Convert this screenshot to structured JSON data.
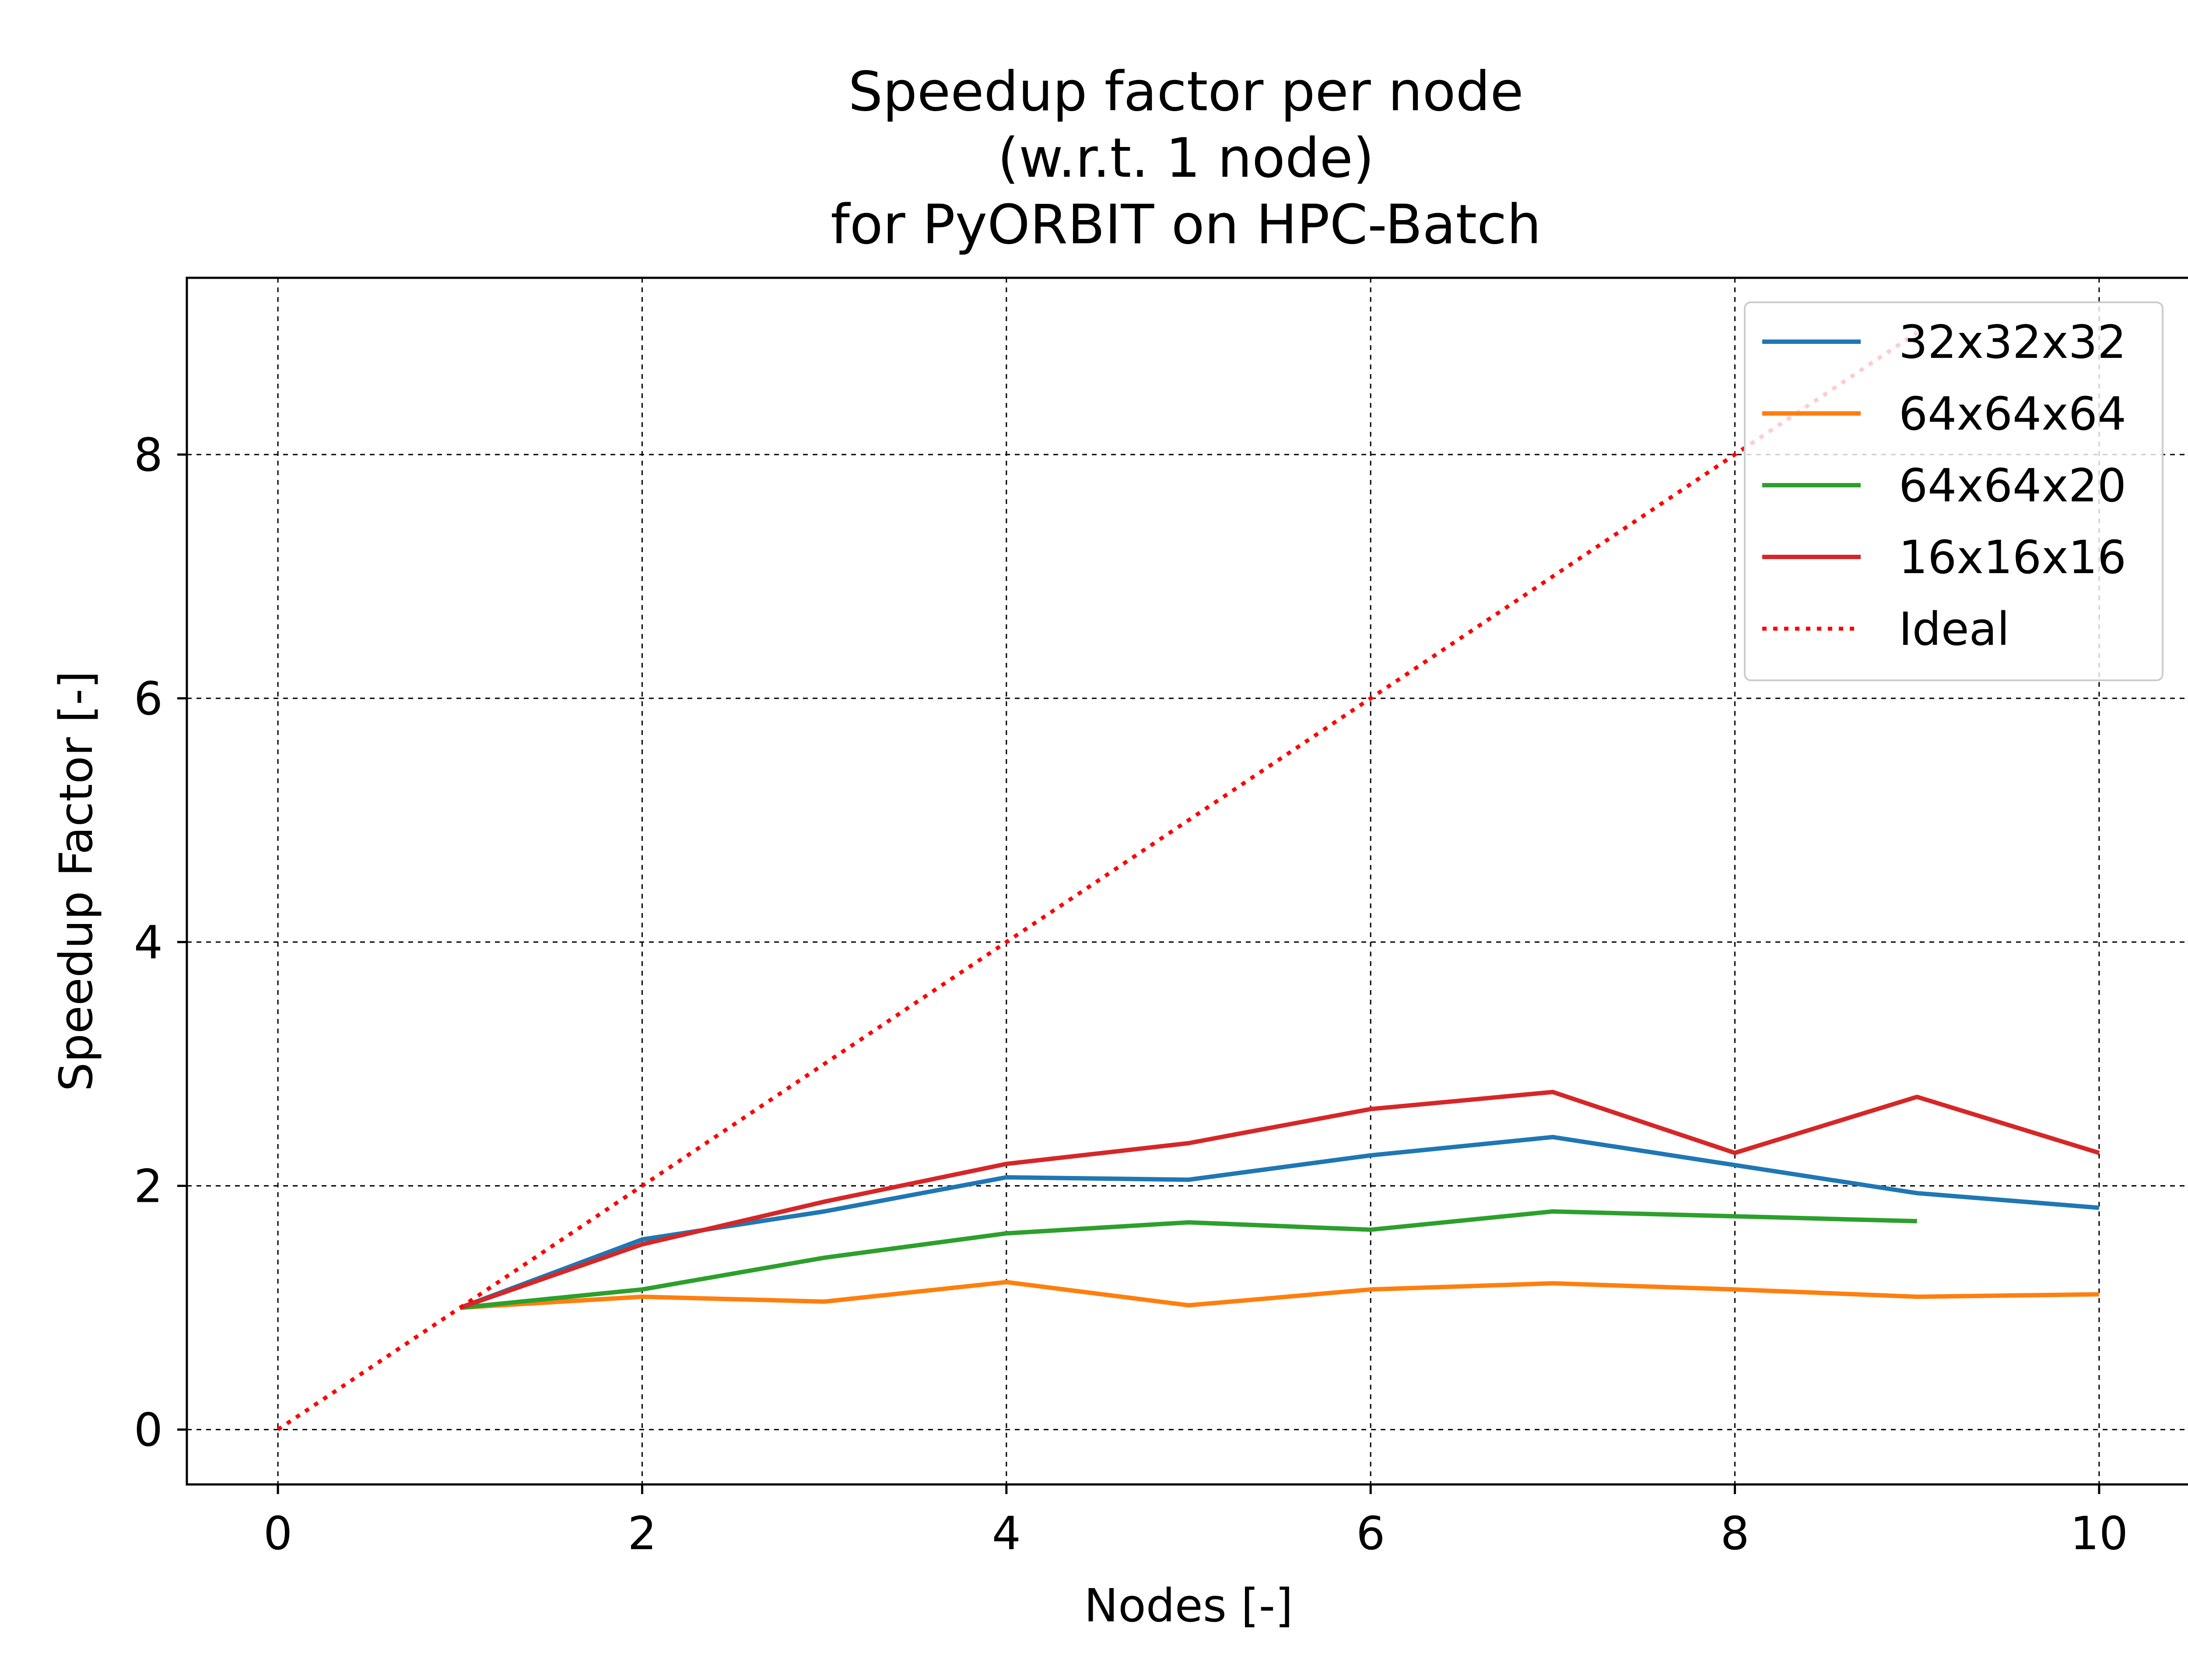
{
  "chart_data": {
    "type": "line",
    "title": [
      "Speedup factor per node",
      "(w.r.t. 1 node)",
      "for PyORBIT on HPC-Batch"
    ],
    "xlabel": "Nodes [-]",
    "ylabel": "Speedup Factor [-]",
    "xlim": [
      -0.5,
      10.5
    ],
    "ylim": [
      -0.45,
      9.45
    ],
    "xticks": [
      0,
      2,
      4,
      6,
      8,
      10
    ],
    "yticks": [
      0,
      2,
      4,
      6,
      8
    ],
    "grid": true,
    "legend_position": "top-right",
    "series": [
      {
        "name": "32x32x32",
        "color": "#1f77b4",
        "style": "solid",
        "x": [
          1,
          2,
          3,
          4,
          5,
          6,
          7,
          8,
          9,
          10
        ],
        "y": [
          1.0,
          1.56,
          1.79,
          2.07,
          2.05,
          2.25,
          2.4,
          2.17,
          1.94,
          1.82
        ]
      },
      {
        "name": "64x64x64",
        "color": "#ff7f0e",
        "style": "solid",
        "x": [
          1,
          2,
          3,
          4,
          5,
          6,
          7,
          8,
          9,
          10
        ],
        "y": [
          1.0,
          1.09,
          1.05,
          1.21,
          1.02,
          1.15,
          1.2,
          1.15,
          1.09,
          1.11
        ]
      },
      {
        "name": "64x64x20",
        "color": "#2ca02c",
        "style": "solid",
        "x": [
          1,
          2,
          3,
          4,
          5,
          6,
          7,
          8,
          9
        ],
        "y": [
          1.0,
          1.15,
          1.41,
          1.61,
          1.7,
          1.64,
          1.79,
          1.75,
          1.71
        ]
      },
      {
        "name": "16x16x16",
        "color": "#d62728",
        "style": "solid",
        "x": [
          1,
          2,
          3,
          4,
          5,
          6,
          7,
          8,
          9,
          10
        ],
        "y": [
          1.0,
          1.52,
          1.87,
          2.18,
          2.35,
          2.63,
          2.77,
          2.27,
          2.73,
          2.27
        ]
      },
      {
        "name": "Ideal",
        "color": "#ff0000",
        "style": "dotted",
        "x": [
          0,
          1,
          2,
          3,
          4,
          5,
          6,
          7,
          8,
          9
        ],
        "y": [
          0,
          1,
          2,
          3,
          4,
          5,
          6,
          7,
          8,
          9
        ]
      }
    ]
  }
}
